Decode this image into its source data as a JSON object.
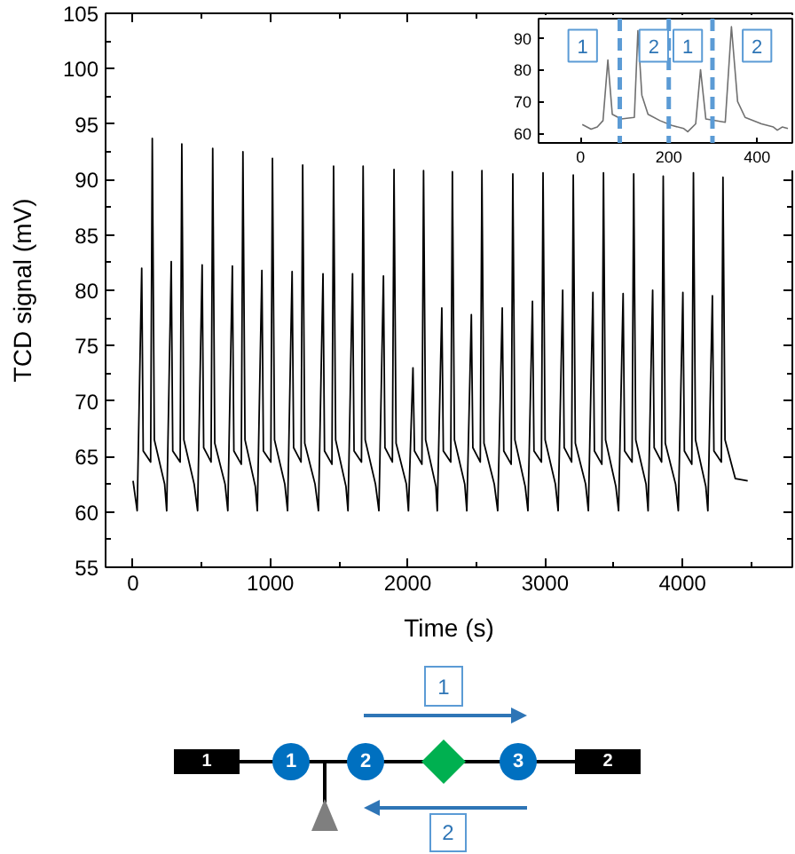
{
  "chart_data": [
    {
      "type": "line",
      "xlabel": "Time (s)",
      "ylabel": "TCD signal (mV)",
      "color": "#000000",
      "xlim": [
        -200,
        4800
      ],
      "ylim": [
        55,
        105
      ],
      "xticks": [
        0,
        1000,
        2000,
        3000,
        4000
      ],
      "yticks": [
        55,
        60,
        65,
        70,
        75,
        80,
        85,
        90,
        95,
        100,
        105
      ],
      "x": [
        0,
        30,
        63,
        74,
        128,
        140,
        155,
        230,
        245,
        278,
        289,
        343,
        355,
        370,
        445,
        470,
        503,
        514,
        568,
        580,
        595,
        670,
        690,
        723,
        734,
        788,
        800,
        815,
        890,
        905,
        938,
        949,
        1003,
        1015,
        1030,
        1105,
        1125,
        1158,
        1169,
        1223,
        1235,
        1250,
        1325,
        1350,
        1383,
        1394,
        1448,
        1460,
        1475,
        1550,
        1565,
        1598,
        1609,
        1663,
        1675,
        1690,
        1765,
        1790,
        1823,
        1834,
        1888,
        1900,
        1915,
        1990,
        2005,
        2038,
        2049,
        2103,
        2115,
        2130,
        2205,
        2215,
        2248,
        2259,
        2313,
        2325,
        2340,
        2415,
        2430,
        2463,
        2474,
        2528,
        2540,
        2555,
        2630,
        2655,
        2688,
        2699,
        2753,
        2765,
        2780,
        2855,
        2875,
        2908,
        2919,
        2973,
        2985,
        3000,
        3075,
        3095,
        3128,
        3139,
        3193,
        3205,
        3220,
        3295,
        3315,
        3348,
        3359,
        3413,
        3425,
        3440,
        3515,
        3535,
        3568,
        3579,
        3633,
        3645,
        3660,
        3735,
        3750,
        3783,
        3794,
        3848,
        3860,
        3875,
        3950,
        3970,
        4003,
        4014,
        4068,
        4080,
        4095,
        4170,
        4185,
        4218,
        4229,
        4283,
        4295,
        4310,
        4385,
        4475
      ],
      "values": [
        62.8,
        60.1,
        82.0,
        65.5,
        64.5,
        93.7,
        66.5,
        62.5,
        60.1,
        82.6,
        65.5,
        64.5,
        93.2,
        66.5,
        62.5,
        60.1,
        82.3,
        65.8,
        64.5,
        92.8,
        66.2,
        62.5,
        60.1,
        82.2,
        65.5,
        64.3,
        92.5,
        66.5,
        62.3,
        60.1,
        81.8,
        65.5,
        64.5,
        91.9,
        66.5,
        62.5,
        60.1,
        81.7,
        65.8,
        64.5,
        91.3,
        66.2,
        62.5,
        60.1,
        81.5,
        65.5,
        64.3,
        91.2,
        66.5,
        62.3,
        60.1,
        81.5,
        65.5,
        64.5,
        91.2,
        66.5,
        62.5,
        60.1,
        81.3,
        65.8,
        64.5,
        90.9,
        66.2,
        62.5,
        60.1,
        73.0,
        65.5,
        64.3,
        90.8,
        66.5,
        62.3,
        60.1,
        78.4,
        65.5,
        64.5,
        90.7,
        66.5,
        62.5,
        60.1,
        77.8,
        65.8,
        64.5,
        90.8,
        66.2,
        62.5,
        60.1,
        78.4,
        65.5,
        64.3,
        90.5,
        66.5,
        62.3,
        60.1,
        79.0,
        65.5,
        64.5,
        90.6,
        66.5,
        62.5,
        60.1,
        80.0,
        65.8,
        64.5,
        90.4,
        66.2,
        62.5,
        60.1,
        79.8,
        65.5,
        64.3,
        90.6,
        66.5,
        62.3,
        60.1,
        79.7,
        65.5,
        64.5,
        90.5,
        66.5,
        62.5,
        60.1,
        80.0,
        65.8,
        64.5,
        90.3,
        66.2,
        62.5,
        60.1,
        79.8,
        65.5,
        64.3,
        90.6,
        66.5,
        62.3,
        60.1,
        79.5,
        65.5,
        64.5,
        90.2,
        66.5,
        63.0,
        62.8
      ]
    },
    {
      "type": "line",
      "color": "#707070",
      "xlim": [
        -95,
        480
      ],
      "ylim": [
        57,
        96
      ],
      "xticks": [
        0,
        200,
        400
      ],
      "yticks": [
        60,
        70,
        80,
        90
      ],
      "x": [
        4,
        24,
        38,
        51,
        62,
        72,
        92,
        122,
        130,
        139,
        153,
        180,
        207,
        234,
        243,
        261,
        272,
        284,
        328,
        342,
        356,
        373,
        410,
        437,
        446,
        457,
        470
      ],
      "values": [
        62.8,
        61.3,
        62.0,
        64.0,
        83.0,
        66.0,
        64.5,
        65.0,
        92.2,
        72.0,
        66.0,
        64.0,
        62.5,
        61.5,
        60.5,
        63.0,
        80.0,
        64.5,
        63.5,
        93.5,
        70.0,
        65.0,
        63.0,
        62.0,
        61.0,
        62.0,
        61.5
      ],
      "ref_lines": [
        {
          "axis": "x",
          "value": 89,
          "color": "#5b9bd5",
          "line_style": "dashed"
        },
        {
          "axis": "x",
          "value": 200,
          "color": "#5b9bd5",
          "line_style": "dashed"
        },
        {
          "axis": "x",
          "value": 299,
          "color": "#5b9bd5",
          "line_style": "dashed"
        }
      ],
      "annotations": [
        {
          "text": "1",
          "x": 5,
          "y": 87.5
        },
        {
          "text": "2",
          "x": 166,
          "y": 87.5
        },
        {
          "text": "1",
          "x": 243,
          "y": 87.5
        },
        {
          "text": "2",
          "x": 400,
          "y": 87.5
        }
      ]
    },
    {
      "type": "other",
      "annotations": [
        "1",
        "1",
        "1",
        "2",
        "3",
        "2",
        "2"
      ]
    }
  ]
}
